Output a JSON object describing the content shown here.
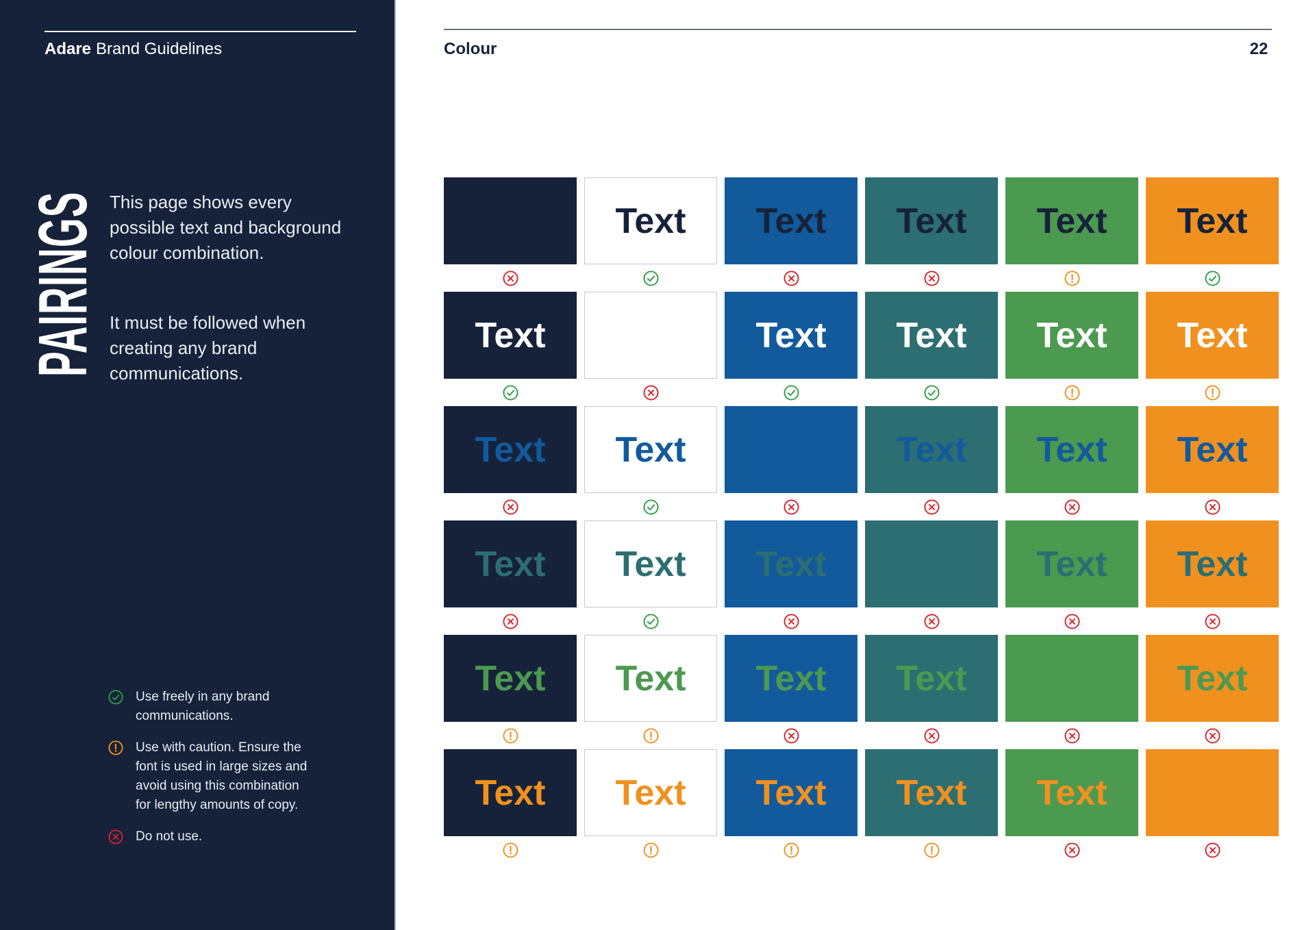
{
  "page": {
    "title": "Colour",
    "page_number": "22"
  },
  "sidebar": {
    "brand": "Adare",
    "subtitle": "Brand Guidelines",
    "section_title": "PAIRINGS",
    "description_1": "This page shows every\npossible text and background\ncolour combination.",
    "description_2": "It must be followed when\ncreating any brand\ncommunications.",
    "legend": [
      {
        "status": "yes",
        "label": "Use freely in any brand\ncommunications."
      },
      {
        "status": "caution",
        "label": "Use with caution. Ensure the\nfont is used in large sizes and\navoid using this combination\nfor lengthy amounts of copy."
      },
      {
        "status": "no",
        "label": "Do not use."
      }
    ]
  },
  "palette": {
    "navy": "#16223A",
    "white": "#FFFFFF",
    "blue": "#125A9C",
    "teal": "#2C6E72",
    "green": "#4C9950",
    "orange": "#F0911F"
  },
  "status_colors": {
    "yes": "#2F9E45",
    "caution": "#F0911F",
    "no": "#D8232A"
  },
  "grid": {
    "sample_label": "Text",
    "columns": [
      "navy",
      "white",
      "blue",
      "teal",
      "green",
      "orange"
    ],
    "rows": [
      {
        "text_color": "navy",
        "statuses": [
          "no",
          "yes",
          "no",
          "no",
          "caution",
          "yes"
        ]
      },
      {
        "text_color": "white",
        "statuses": [
          "yes",
          "no",
          "yes",
          "yes",
          "caution",
          "caution"
        ]
      },
      {
        "text_color": "blue",
        "statuses": [
          "no",
          "yes",
          "no",
          "no",
          "no",
          "no"
        ]
      },
      {
        "text_color": "teal",
        "statuses": [
          "no",
          "yes",
          "no",
          "no",
          "no",
          "no"
        ]
      },
      {
        "text_color": "green",
        "statuses": [
          "caution",
          "caution",
          "no",
          "no",
          "no",
          "no"
        ]
      },
      {
        "text_color": "orange",
        "statuses": [
          "caution",
          "caution",
          "caution",
          "caution",
          "no",
          "no"
        ]
      }
    ]
  }
}
